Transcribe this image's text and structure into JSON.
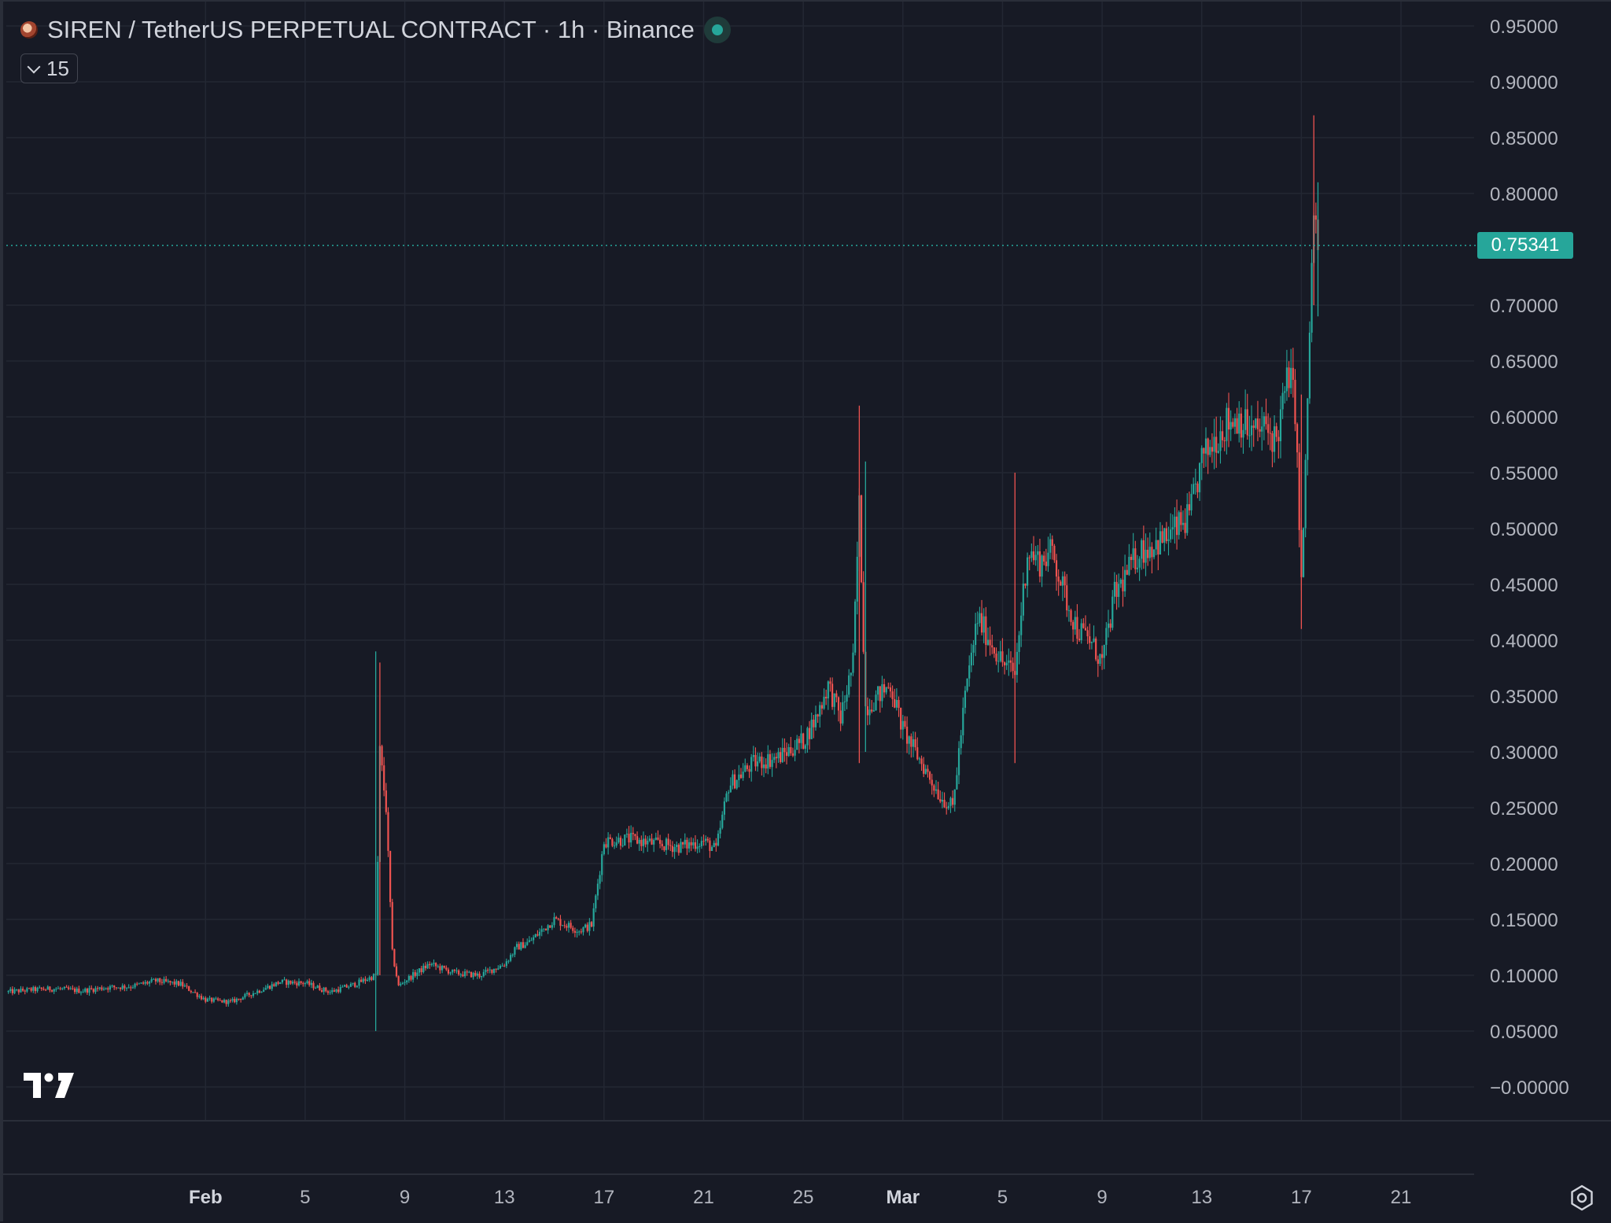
{
  "legend": {
    "title": "SIREN / TetherUS PERPETUAL CONTRACT · 1h · Binance",
    "collapsed_count": "15"
  },
  "colors": {
    "background": "#171a25",
    "grid": "#232733",
    "up": "#26a69a",
    "down": "#ef5350",
    "axis_text": "#b2b5be",
    "last_price": "#26a69a"
  },
  "icons": [
    "symbol-icon",
    "market-status-dot",
    "chevron-down-icon",
    "tradingview-logo-icon",
    "settings-icon"
  ],
  "chart_data": {
    "type": "candlestick",
    "title": "",
    "xlabel": "",
    "ylabel": "",
    "ylim": [
      -0.03,
      0.98
    ],
    "x_range": [
      "2025-01-24",
      "2025-03-24"
    ],
    "grid": true,
    "last_price": "0.75341",
    "last_price_value": 0.75341,
    "y_ticks": [
      {
        "value": 0.95,
        "label": "0.95000"
      },
      {
        "value": 0.9,
        "label": "0.90000"
      },
      {
        "value": 0.85,
        "label": "0.85000"
      },
      {
        "value": 0.8,
        "label": "0.80000"
      },
      {
        "value": 0.7,
        "label": "0.70000"
      },
      {
        "value": 0.65,
        "label": "0.65000"
      },
      {
        "value": 0.6,
        "label": "0.60000"
      },
      {
        "value": 0.55,
        "label": "0.55000"
      },
      {
        "value": 0.5,
        "label": "0.50000"
      },
      {
        "value": 0.45,
        "label": "0.45000"
      },
      {
        "value": 0.4,
        "label": "0.40000"
      },
      {
        "value": 0.35,
        "label": "0.35000"
      },
      {
        "value": 0.3,
        "label": "0.30000"
      },
      {
        "value": 0.25,
        "label": "0.25000"
      },
      {
        "value": 0.2,
        "label": "0.20000"
      },
      {
        "value": 0.15,
        "label": "0.15000"
      },
      {
        "value": 0.1,
        "label": "0.10000"
      },
      {
        "value": 0.05,
        "label": "0.05000"
      },
      {
        "value": 0.0,
        "label": "−0.00000"
      }
    ],
    "x_ticks": [
      {
        "date": "2025-02-01",
        "label": "Feb",
        "bold": true
      },
      {
        "date": "2025-02-05",
        "label": "5"
      },
      {
        "date": "2025-02-09",
        "label": "9"
      },
      {
        "date": "2025-02-13",
        "label": "13"
      },
      {
        "date": "2025-02-17",
        "label": "17"
      },
      {
        "date": "2025-02-21",
        "label": "21"
      },
      {
        "date": "2025-02-25",
        "label": "25"
      },
      {
        "date": "2025-03-01",
        "label": "Mar",
        "bold": true
      },
      {
        "date": "2025-03-05",
        "label": "5"
      },
      {
        "date": "2025-03-09",
        "label": "9"
      },
      {
        "date": "2025-03-13",
        "label": "13"
      },
      {
        "date": "2025-03-17",
        "label": "17"
      },
      {
        "date": "2025-03-21",
        "label": "21"
      }
    ],
    "series": [
      {
        "values": [
          [
            "2025-01-24",
            0.085
          ],
          [
            "2025-01-25",
            0.087
          ],
          [
            "2025-01-26",
            0.088
          ],
          [
            "2025-01-27",
            0.086
          ],
          [
            "2025-01-28",
            0.089
          ],
          [
            "2025-01-29",
            0.09
          ],
          [
            "2025-01-30",
            0.095
          ],
          [
            "2025-01-31",
            0.092
          ],
          [
            "2025-02-01",
            0.078
          ],
          [
            "2025-02-02",
            0.076
          ],
          [
            "2025-02-03",
            0.085
          ],
          [
            "2025-02-04",
            0.094
          ],
          [
            "2025-02-05",
            0.093
          ],
          [
            "2025-02-06",
            0.085
          ],
          [
            "2025-02-07",
            0.092
          ],
          [
            "2025-02-07T20",
            0.1
          ],
          [
            "2025-02-08",
            0.3
          ],
          [
            "2025-02-08T06",
            0.25
          ],
          [
            "2025-02-08T12",
            0.12
          ],
          [
            "2025-02-08T18",
            0.09
          ],
          [
            "2025-02-09",
            0.095
          ],
          [
            "2025-02-10",
            0.11
          ],
          [
            "2025-02-11",
            0.102
          ],
          [
            "2025-02-12",
            0.1
          ],
          [
            "2025-02-12T12",
            0.105
          ],
          [
            "2025-02-13",
            0.11
          ],
          [
            "2025-02-13T12",
            0.125
          ],
          [
            "2025-02-14",
            0.13
          ],
          [
            "2025-02-15",
            0.15
          ],
          [
            "2025-02-15T12",
            0.145
          ],
          [
            "2025-02-16",
            0.14
          ],
          [
            "2025-02-16T12",
            0.145
          ],
          [
            "2025-02-17",
            0.22
          ],
          [
            "2025-02-18",
            0.222
          ],
          [
            "2025-02-19",
            0.218
          ],
          [
            "2025-02-20",
            0.215
          ],
          [
            "2025-02-21",
            0.22
          ],
          [
            "2025-02-21T12",
            0.212
          ],
          [
            "2025-02-22",
            0.27
          ],
          [
            "2025-02-23",
            0.29
          ],
          [
            "2025-02-24",
            0.295
          ],
          [
            "2025-02-25",
            0.31
          ],
          [
            "2025-02-25T12",
            0.33
          ],
          [
            "2025-02-26",
            0.36
          ],
          [
            "2025-02-26T12",
            0.33
          ],
          [
            "2025-02-27",
            0.38
          ],
          [
            "2025-02-27T06",
            0.52
          ],
          [
            "2025-02-27T12",
            0.34
          ],
          [
            "2025-02-28",
            0.35
          ],
          [
            "2025-02-28T12",
            0.36
          ],
          [
            "2025-03-01",
            0.32
          ],
          [
            "2025-03-01T12",
            0.3
          ],
          [
            "2025-03-02",
            0.28
          ],
          [
            "2025-03-02T12",
            0.26
          ],
          [
            "2025-03-03",
            0.25
          ],
          [
            "2025-03-03T12",
            0.35
          ],
          [
            "2025-03-04",
            0.42
          ],
          [
            "2025-03-04T12",
            0.4
          ],
          [
            "2025-03-05",
            0.38
          ],
          [
            "2025-03-05T12",
            0.37
          ],
          [
            "2025-03-06",
            0.48
          ],
          [
            "2025-03-06T12",
            0.47
          ],
          [
            "2025-03-07",
            0.48
          ],
          [
            "2025-03-07T12",
            0.44
          ],
          [
            "2025-03-08",
            0.41
          ],
          [
            "2025-03-08T12",
            0.4
          ],
          [
            "2025-03-09",
            0.38
          ],
          [
            "2025-03-09T12",
            0.44
          ],
          [
            "2025-03-10",
            0.46
          ],
          [
            "2025-03-10T12",
            0.48
          ],
          [
            "2025-03-11",
            0.485
          ],
          [
            "2025-03-11T12",
            0.49
          ],
          [
            "2025-03-12",
            0.5
          ],
          [
            "2025-03-12T12",
            0.51
          ],
          [
            "2025-03-13",
            0.56
          ],
          [
            "2025-03-13T12",
            0.58
          ],
          [
            "2025-03-14",
            0.595
          ],
          [
            "2025-03-14T12",
            0.6
          ],
          [
            "2025-03-15",
            0.585
          ],
          [
            "2025-03-15T12",
            0.59
          ],
          [
            "2025-03-16",
            0.58
          ],
          [
            "2025-03-16T12",
            0.64
          ],
          [
            "2025-03-16T18",
            0.61
          ],
          [
            "2025-03-17",
            0.45
          ],
          [
            "2025-03-17T04",
            0.55
          ],
          [
            "2025-03-17T08",
            0.68
          ],
          [
            "2025-03-17T12",
            0.78
          ],
          [
            "2025-03-17T16",
            0.753
          ]
        ]
      }
    ]
  }
}
